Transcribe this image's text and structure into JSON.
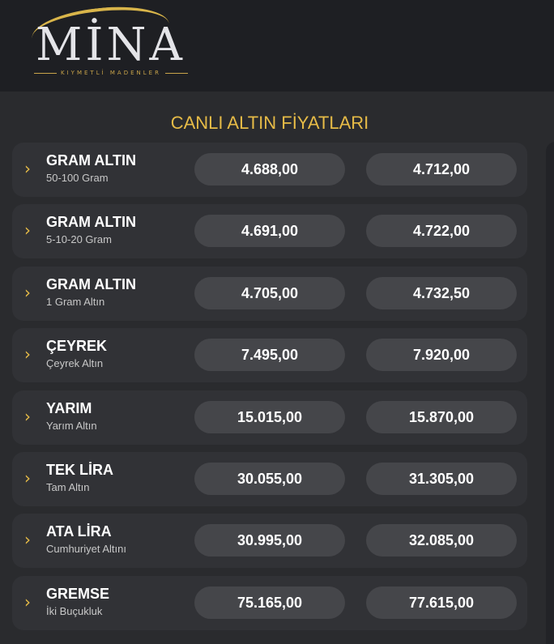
{
  "logo": {
    "word": "MİNA",
    "tagline": "KIYMETLİ MADENLER"
  },
  "title": "CANLI ALTIN FİYATLARI",
  "colors": {
    "accent": "#e6bb47",
    "row": "#313236",
    "pill": "#45464a"
  },
  "rows": [
    {
      "name": "GRAM ALTIN",
      "sub": "50-100 Gram",
      "buy": "4.688,00",
      "sell": "4.712,00"
    },
    {
      "name": "GRAM ALTIN",
      "sub": "5-10-20 Gram",
      "buy": "4.691,00",
      "sell": "4.722,00"
    },
    {
      "name": "GRAM ALTIN",
      "sub": "1 Gram Altın",
      "buy": "4.705,00",
      "sell": "4.732,50"
    },
    {
      "name": "ÇEYREK",
      "sub": "Çeyrek Altın",
      "buy": "7.495,00",
      "sell": "7.920,00"
    },
    {
      "name": "YARIM",
      "sub": "Yarım Altın",
      "buy": "15.015,00",
      "sell": "15.870,00"
    },
    {
      "name": "TEK LİRA",
      "sub": "Tam Altın",
      "buy": "30.055,00",
      "sell": "31.305,00"
    },
    {
      "name": "ATA LİRA",
      "sub": "Cumhuriyet Altını",
      "buy": "30.995,00",
      "sell": "32.085,00"
    },
    {
      "name": "GREMSE",
      "sub": "İki Buçukluk",
      "buy": "75.165,00",
      "sell": "77.615,00"
    }
  ]
}
